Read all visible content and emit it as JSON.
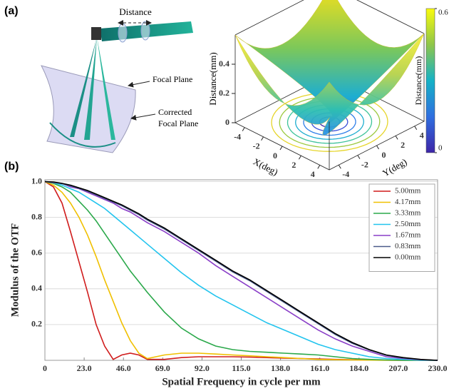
{
  "panel_labels": [
    "(a)",
    "(b)"
  ],
  "diagram": {
    "distance_label": "Distance",
    "focal_plane_label": "Focal Plane",
    "corrected_focal_plane_label": [
      "Corrected",
      "Focal Plane"
    ]
  },
  "chart_data": [
    {
      "type": "surface3d",
      "xlabel": "X(deg)",
      "ylabel": "Y(deg)",
      "zlabel": "Distance(mm)",
      "xlim": [
        -5,
        5
      ],
      "ylim": [
        -5,
        5
      ],
      "zlim": [
        0,
        0.6
      ],
      "xticks": [
        -4,
        -2,
        0,
        2,
        4
      ],
      "yticks": [
        -4,
        -2,
        0,
        2,
        4
      ],
      "zticks": [
        0,
        0.2,
        0.4
      ],
      "colorbar": {
        "label": "Distance(mm)",
        "lim": [
          0,
          0.6
        ],
        "ticks": [
          0,
          0.6
        ]
      }
    },
    {
      "type": "line",
      "xlabel": "Spatial Frequency in cycle per mm",
      "ylabel": "Modulus of the OTF",
      "x": [
        0,
        5,
        10,
        15,
        20,
        25,
        30,
        35,
        40,
        45,
        50,
        55,
        60,
        70,
        80,
        90,
        100,
        110,
        120,
        130,
        140,
        150,
        160,
        170,
        180,
        190,
        200,
        210,
        220,
        230
      ],
      "series": [
        {
          "name": "5.00mm",
          "color": "#d01c1c",
          "values": [
            1.0,
            0.97,
            0.88,
            0.72,
            0.55,
            0.38,
            0.2,
            0.08,
            0.005,
            0.03,
            0.04,
            0.03,
            0.005,
            0.005,
            0.015,
            0.02,
            0.02,
            0.02,
            0.018,
            0.015,
            0.012,
            0.01,
            0.008,
            0.005,
            0.003,
            0.002,
            0.001,
            0,
            0,
            0
          ]
        },
        {
          "name": "4.17mm",
          "color": "#f0c000",
          "values": [
            1.0,
            0.98,
            0.94,
            0.88,
            0.8,
            0.7,
            0.58,
            0.45,
            0.33,
            0.21,
            0.11,
            0.04,
            0.01,
            0.03,
            0.04,
            0.04,
            0.035,
            0.03,
            0.025,
            0.02,
            0.015,
            0.01,
            0.005,
            0.003,
            0.002,
            0.001,
            0,
            0,
            0,
            0
          ]
        },
        {
          "name": "3.33mm",
          "color": "#2aa84a",
          "values": [
            1.0,
            0.99,
            0.97,
            0.94,
            0.89,
            0.84,
            0.78,
            0.71,
            0.64,
            0.57,
            0.5,
            0.44,
            0.38,
            0.27,
            0.18,
            0.12,
            0.08,
            0.06,
            0.05,
            0.045,
            0.04,
            0.035,
            0.03,
            0.02,
            0.01,
            0.005,
            0.002,
            0,
            0,
            0
          ]
        },
        {
          "name": "2.50mm",
          "color": "#22c4ee",
          "values": [
            1.0,
            0.995,
            0.98,
            0.96,
            0.94,
            0.91,
            0.88,
            0.85,
            0.81,
            0.77,
            0.73,
            0.69,
            0.65,
            0.57,
            0.49,
            0.42,
            0.36,
            0.31,
            0.26,
            0.21,
            0.17,
            0.13,
            0.09,
            0.06,
            0.04,
            0.02,
            0.01,
            0.005,
            0,
            0
          ]
        },
        {
          "name": "1.67mm",
          "color": "#8a3fc8",
          "values": [
            1.0,
            0.995,
            0.99,
            0.97,
            0.96,
            0.94,
            0.92,
            0.9,
            0.88,
            0.85,
            0.83,
            0.8,
            0.77,
            0.72,
            0.66,
            0.6,
            0.53,
            0.47,
            0.41,
            0.35,
            0.29,
            0.23,
            0.17,
            0.12,
            0.08,
            0.05,
            0.02,
            0.01,
            0.003,
            0
          ]
        },
        {
          "name": "0.83mm",
          "color": "#4a5a8a",
          "values": [
            1.0,
            0.997,
            0.988,
            0.977,
            0.962,
            0.946,
            0.926,
            0.906,
            0.886,
            0.865,
            0.84,
            0.815,
            0.785,
            0.735,
            0.675,
            0.615,
            0.555,
            0.495,
            0.445,
            0.385,
            0.325,
            0.265,
            0.205,
            0.145,
            0.095,
            0.058,
            0.028,
            0.013,
            0.004,
            0
          ]
        },
        {
          "name": "0.00mm",
          "color": "#000000",
          "values": [
            1.0,
            0.998,
            0.99,
            0.98,
            0.965,
            0.95,
            0.93,
            0.91,
            0.89,
            0.87,
            0.845,
            0.82,
            0.79,
            0.74,
            0.68,
            0.62,
            0.56,
            0.5,
            0.45,
            0.39,
            0.33,
            0.27,
            0.21,
            0.15,
            0.1,
            0.06,
            0.03,
            0.015,
            0.005,
            0
          ]
        }
      ],
      "xlim": [
        0,
        230
      ],
      "ylim": [
        0,
        1.01
      ],
      "xticks": [
        0,
        {
          "value": 23,
          "label": "23.0"
        },
        {
          "value": 46,
          "label": "46.0"
        },
        {
          "value": 69,
          "label": "69.0"
        },
        {
          "value": 92,
          "label": "92.0"
        },
        {
          "value": 115,
          "label": "115.0"
        },
        {
          "value": 138,
          "label": "138.0"
        },
        {
          "value": 161,
          "label": "161.0"
        },
        {
          "value": 184,
          "label": "184.0"
        },
        {
          "value": 207,
          "label": "207.0"
        },
        {
          "value": 230,
          "label": "230.0"
        }
      ],
      "yticks": [
        {
          "value": 0.2,
          "label": "0.2"
        },
        0.4,
        0.6,
        0.8,
        {
          "value": 1,
          "label": "1.0"
        }
      ],
      "grid": true,
      "legend": "upper right"
    }
  ]
}
